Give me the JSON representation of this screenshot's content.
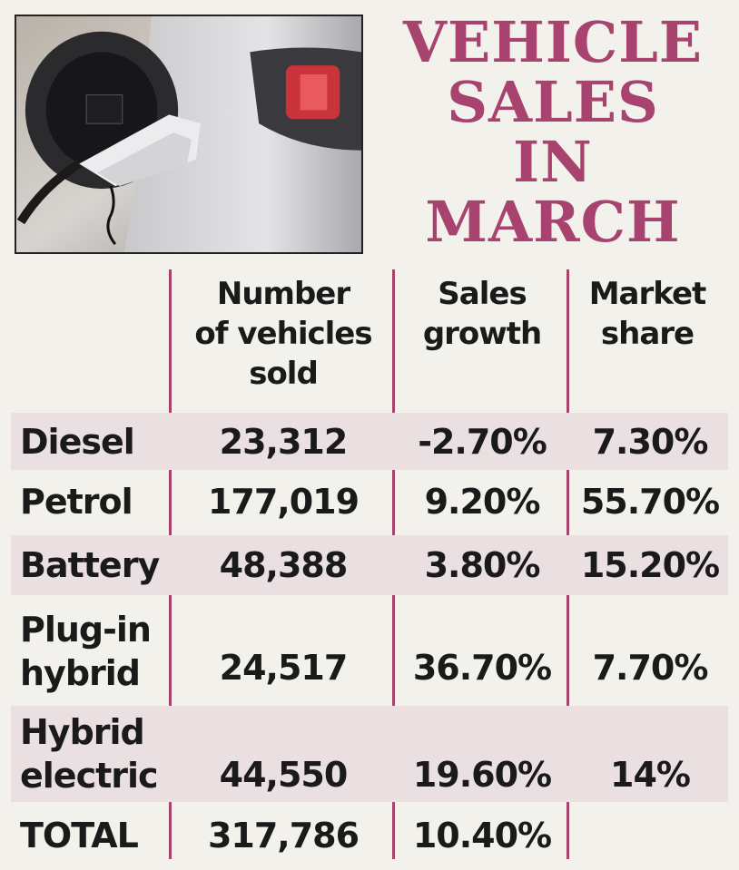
{
  "headline": [
    "VEHICLE",
    "SALES",
    "IN",
    "MARCH"
  ],
  "photo": {
    "icon": "ev-charger-photo"
  },
  "colors": {
    "accent": "#a8426f",
    "row_shade": "#eadfe1",
    "background": "#f3f1ec"
  },
  "table": {
    "headers": {
      "number": [
        "Number",
        "of vehicles",
        "sold"
      ],
      "growth": [
        "Sales",
        "growth"
      ],
      "share": [
        "Market",
        "share"
      ]
    },
    "rows": [
      {
        "type": [
          "Diesel"
        ],
        "number": "23,312",
        "growth": "-2.70%",
        "share": "7.30%"
      },
      {
        "type": [
          "Petrol"
        ],
        "number": "177,019",
        "growth": "9.20%",
        "share": "55.70%"
      },
      {
        "type": [
          "Battery"
        ],
        "number": "48,388",
        "growth": "3.80%",
        "share": "15.20%"
      },
      {
        "type": [
          "Plug-in",
          "hybrid"
        ],
        "number": "24,517",
        "growth": "36.70%",
        "share": "7.70%"
      },
      {
        "type": [
          "Hybrid",
          "electric"
        ],
        "number": "44,550",
        "growth": "19.60%",
        "share": "14%"
      },
      {
        "type": [
          "TOTAL"
        ],
        "number": "317,786",
        "growth": "10.40%",
        "share": ""
      }
    ]
  },
  "chart_data": {
    "type": "table",
    "title": "VEHICLE SALES IN MARCH",
    "columns": [
      "Number of vehicles sold",
      "Sales growth",
      "Market share"
    ],
    "categories": [
      "Diesel",
      "Petrol",
      "Battery",
      "Plug-in hybrid",
      "Hybrid electric",
      "TOTAL"
    ],
    "series": [
      {
        "name": "Number of vehicles sold",
        "values": [
          23312,
          177019,
          48388,
          24517,
          44550,
          317786
        ]
      },
      {
        "name": "Sales growth",
        "values": [
          -2.7,
          9.2,
          3.8,
          36.7,
          19.6,
          10.4
        ]
      },
      {
        "name": "Market share",
        "values": [
          7.3,
          55.7,
          15.2,
          7.7,
          14,
          null
        ]
      }
    ]
  }
}
